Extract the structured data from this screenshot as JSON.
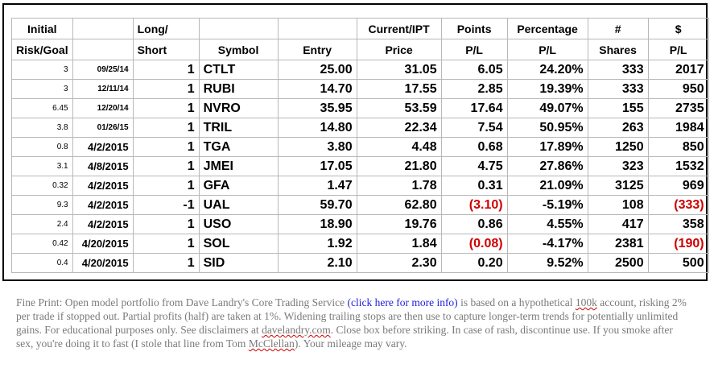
{
  "table": {
    "header1": [
      "Initial",
      "",
      "Long/",
      "",
      "",
      "Current/IPT",
      "Points",
      "Percentage",
      "#",
      "$"
    ],
    "header2": [
      "Risk/Goal",
      "",
      "Short",
      "Symbol",
      "Entry",
      "Price",
      "P/L",
      "P/L",
      "Shares",
      "P/L"
    ],
    "rows": [
      {
        "risk": "3",
        "date": "09/25/14",
        "dir": "1",
        "symbol": "CTLT",
        "entry": "25.00",
        "current": "31.05",
        "points": "6.05",
        "pct": "24.20%",
        "shares": "333",
        "pl": "2017"
      },
      {
        "risk": "3",
        "date": "12/11/14",
        "dir": "1",
        "symbol": "RUBI",
        "entry": "14.70",
        "current": "17.55",
        "points": "2.85",
        "pct": "19.39%",
        "shares": "333",
        "pl": "950"
      },
      {
        "risk": "6.45",
        "date": "12/20/14",
        "dir": "1",
        "symbol": "NVRO",
        "entry": "35.95",
        "current": "53.59",
        "points": "17.64",
        "pct": "49.07%",
        "shares": "155",
        "pl": "2735"
      },
      {
        "risk": "3.8",
        "date": "01/26/15",
        "dir": "1",
        "symbol": "TRIL",
        "entry": "14.80",
        "current": "22.34",
        "points": "7.54",
        "pct": "50.95%",
        "shares": "263",
        "pl": "1984"
      },
      {
        "risk": "0.8",
        "date": "4/2/2015",
        "dir": "1",
        "symbol": "TGA",
        "entry": "3.80",
        "current": "4.48",
        "points": "0.68",
        "pct": "17.89%",
        "shares": "1250",
        "pl": "850"
      },
      {
        "risk": "3.1",
        "date": "4/8/2015",
        "dir": "1",
        "symbol": "JMEI",
        "entry": "17.05",
        "current": "21.80",
        "points": "4.75",
        "pct": "27.86%",
        "shares": "323",
        "pl": "1532"
      },
      {
        "risk": "0.32",
        "date": "4/2/2015",
        "dir": "1",
        "symbol": "GFA",
        "entry": "1.47",
        "current": "1.78",
        "points": "0.31",
        "pct": "21.09%",
        "shares": "3125",
        "pl": "969"
      },
      {
        "risk": "9.3",
        "date": "4/2/2015",
        "dir": "-1",
        "symbol": "UAL",
        "entry": "59.70",
        "current": "62.80",
        "points": "(3.10)",
        "pct": "-5.19%",
        "shares": "108",
        "pl": "(333)",
        "negative": true
      },
      {
        "risk": "2.4",
        "date": "4/2/2015",
        "dir": "1",
        "symbol": "USO",
        "entry": "18.90",
        "current": "19.76",
        "points": "0.86",
        "pct": "4.55%",
        "shares": "417",
        "pl": "358"
      },
      {
        "risk": "0.42",
        "date": "4/20/2015",
        "dir": "1",
        "symbol": "SOL",
        "entry": "1.92",
        "current": "1.84",
        "points": "(0.08)",
        "pct": "-4.17%",
        "shares": "2381",
        "pl": "(190)",
        "negative": true
      },
      {
        "risk": "0.4",
        "date": "4/20/2015",
        "dir": "1",
        "symbol": "SID",
        "entry": "2.10",
        "current": "2.30",
        "points": "0.20",
        "pct": "9.52%",
        "shares": "2500",
        "pl": "500"
      }
    ]
  },
  "fineprint": {
    "part1": "Fine Print: Open model portfolio from Dave Landry's Core Trading Service ",
    "link": "(click here for more info)",
    "part2": " is based on a hypothetical ",
    "hundredk": "100k",
    "part3": " account, risking 2% per trade if stopped out. Partial profits (half) are taken at 1%. Widening trailing stops are then use to capture longer-term trends for potentially unlimited gains. For educational purposes only. See disclaimers at ",
    "site": "davelandry.com",
    "part4": ". Close box before striking. In case of rash, discontinue use. If you smoke after sex, you're doing it to fast (I stole that line from Tom ",
    "mcclellan": "McClellan",
    "part5": "). Your mileage may vary.",
    "colors": {
      "text": "#7a7a7a",
      "link": "#1f1fd8",
      "negative": "#d00000"
    }
  }
}
